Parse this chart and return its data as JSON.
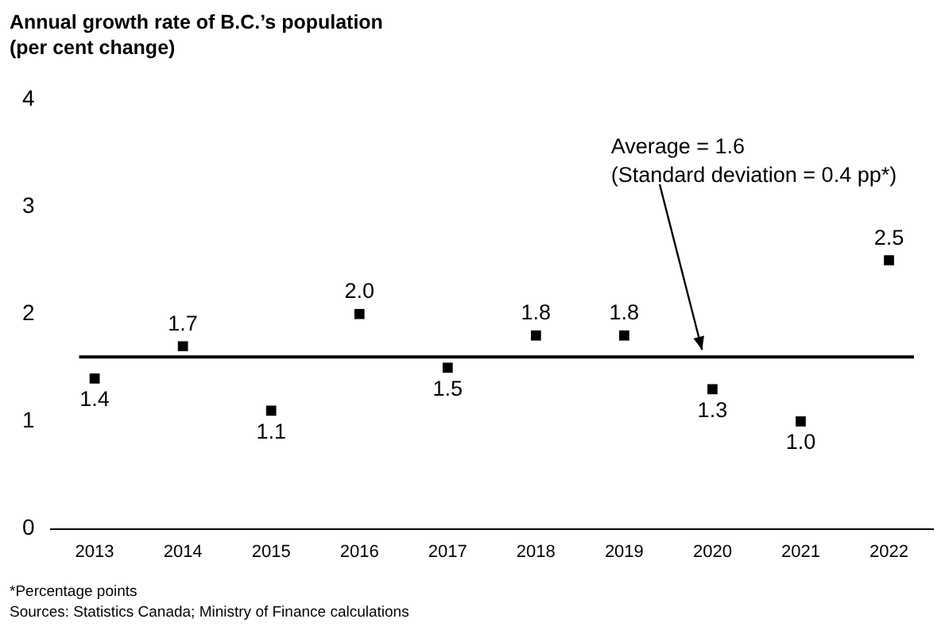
{
  "chart_data": {
    "type": "scatter",
    "title": "Annual growth rate of B.C.’s population\n(per cent change)",
    "categories": [
      "2013",
      "2014",
      "2015",
      "2016",
      "2017",
      "2018",
      "2019",
      "2020",
      "2021",
      "2022"
    ],
    "values": [
      1.4,
      1.7,
      1.1,
      2.0,
      1.5,
      1.8,
      1.8,
      1.3,
      1.0,
      2.5
    ],
    "value_labels": [
      "1.4",
      "1.7",
      "1.1",
      "2.0",
      "1.5",
      "1.8",
      "1.8",
      "1.3",
      "1.0",
      "2.5"
    ],
    "color": "#000000",
    "marker": "square",
    "ylim": [
      0,
      4
    ],
    "yticks": [
      0,
      1,
      2,
      3,
      4
    ],
    "grid": false,
    "legend": false,
    "ref_lines": [
      {
        "axis": "y",
        "value": 1.6,
        "label": "Average = 1.6\n(Standard deviation = 0.4 pp*)",
        "color": "#000000"
      }
    ],
    "annotations": [
      "*Percentage points",
      "Sources: Statistics Canada; Ministry of Finance calculations"
    ]
  }
}
